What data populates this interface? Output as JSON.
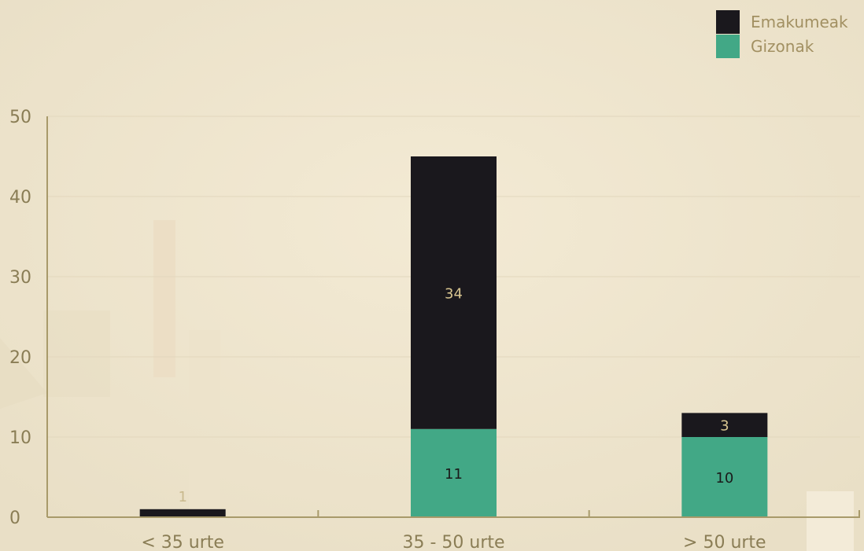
{
  "colors": {
    "women": "#1a181d",
    "men": "#42a886",
    "axis": "#a89a6a",
    "grid": "#e2d7bd",
    "tick_text": "#8a7d55",
    "label_on_dark": "#d8c590",
    "label_on_green": "#1a1a1a",
    "label_above": "#c9b98d"
  },
  "chart_data": {
    "type": "bar",
    "stacked": true,
    "categories": [
      "< 35 urte",
      "35 - 50 urte",
      "> 50 urte"
    ],
    "series": [
      {
        "name": "Gizonak",
        "values": [
          0,
          11,
          10
        ],
        "color": "#42a886"
      },
      {
        "name": "Emakumeak",
        "values": [
          1,
          34,
          3
        ],
        "color": "#1a181d"
      }
    ],
    "data_labels": [
      {
        "category": "< 35 urte",
        "series": "Emakumeak",
        "text": "1"
      },
      {
        "category": "35 - 50 urte",
        "series": "Emakumeak",
        "text": "34"
      },
      {
        "category": "35 - 50 urte",
        "series": "Gizonak",
        "text": "11"
      },
      {
        "category": "> 50 urte",
        "series": "Emakumeak",
        "text": "3"
      },
      {
        "category": "> 50 urte",
        "series": "Gizonak",
        "text": "10"
      }
    ],
    "yticks": [
      "0",
      "10",
      "20",
      "30",
      "40",
      "50"
    ],
    "ylim": [
      0,
      50
    ],
    "grid": true,
    "legend": {
      "position": "top-right",
      "items": [
        {
          "label": "Emakumeak",
          "color": "#1a181d"
        },
        {
          "label": "Gizonak",
          "color": "#42a886"
        }
      ]
    }
  }
}
